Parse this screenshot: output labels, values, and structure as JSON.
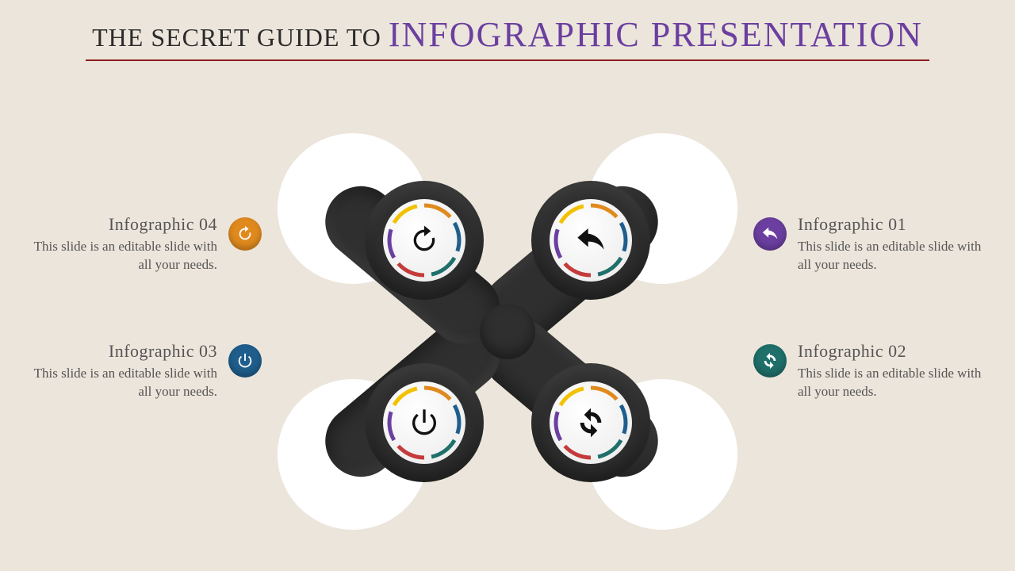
{
  "title": {
    "prefix": "THE SECRET GUIDE TO ",
    "main": "INFOGRAPHIC PRESENTATION",
    "prefix_color": "#2b2b2b",
    "prefix_fontsize": 32,
    "main_color": "#6b3fa0",
    "main_fontsize": 44,
    "underline_color": "#8a1e1e"
  },
  "background_color": "#ece5db",
  "items": [
    {
      "key": "01",
      "title": "Infographic 01",
      "desc": "This slide is an editable slide with all your needs.",
      "badge_color": "#6b3fa0",
      "icon": "reply",
      "side": "right",
      "row": "top"
    },
    {
      "key": "02",
      "title": "Infographic 02",
      "desc": "This slide is an editable slide with all your needs.",
      "badge_color": "#1f6f6a",
      "icon": "sync",
      "side": "right",
      "row": "bottom"
    },
    {
      "key": "03",
      "title": "Infographic 03",
      "desc": "This slide is an editable slide with all your needs.",
      "badge_color": "#1f5e8c",
      "icon": "power",
      "side": "left",
      "row": "bottom"
    },
    {
      "key": "04",
      "title": "Infographic 04",
      "desc": "This slide is an editable slide with all your needs.",
      "badge_color": "#e08a1e",
      "icon": "refresh",
      "side": "left",
      "row": "top"
    }
  ],
  "central": {
    "arm_color": "#2f2f2f",
    "bg_circle_color": "#ffffff",
    "ring_colors": [
      "#e08a1e",
      "#1f5e8c",
      "#1f6f6a",
      "#c43b3b",
      "#6b3fa0",
      "#f2c200"
    ],
    "nodes": [
      {
        "pos": "tl",
        "icon": "refresh"
      },
      {
        "pos": "tr",
        "icon": "reply"
      },
      {
        "pos": "bl",
        "icon": "power"
      },
      {
        "pos": "br",
        "icon": "sync"
      }
    ]
  }
}
